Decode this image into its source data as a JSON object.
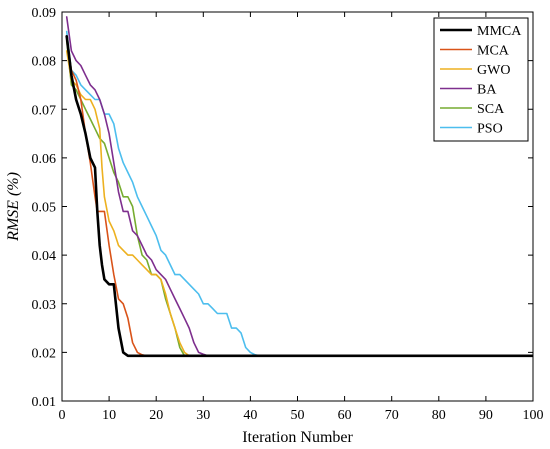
{
  "chart_data": {
    "type": "line",
    "title": "",
    "xlabel": "Iteration Number",
    "ylabel": "RMSE (%)",
    "xlim": [
      0,
      100
    ],
    "ylim": [
      0.01,
      0.09
    ],
    "x_ticks": [
      0,
      10,
      20,
      30,
      40,
      50,
      60,
      70,
      80,
      90,
      100
    ],
    "y_ticks": [
      0.01,
      0.02,
      0.03,
      0.04,
      0.05,
      0.06,
      0.07,
      0.08,
      0.09
    ],
    "y_tick_labels": [
      "0.01",
      "0.02",
      "0.03",
      "0.04",
      "0.05",
      "0.06",
      "0.07",
      "0.08",
      "0.09"
    ],
    "grid": false,
    "legend_position": "top-right",
    "series": [
      {
        "name": "MMCA",
        "color": "#000000",
        "width": 2.6,
        "x": [
          1,
          2,
          3,
          4,
          5,
          6,
          7,
          7.5,
          8,
          8.5,
          9,
          10,
          11,
          12,
          13,
          14,
          100
        ],
        "y": [
          0.085,
          0.077,
          0.072,
          0.069,
          0.065,
          0.06,
          0.058,
          0.049,
          0.042,
          0.038,
          0.035,
          0.034,
          0.034,
          0.025,
          0.02,
          0.0193,
          0.0193
        ]
      },
      {
        "name": "MCA",
        "color": "#D95319",
        "width": 1.6,
        "x": [
          1,
          2,
          3,
          4,
          5,
          6,
          7,
          7.5,
          8,
          9,
          10,
          11,
          12,
          13,
          14,
          15,
          16,
          17,
          18,
          100
        ],
        "y": [
          0.085,
          0.078,
          0.076,
          0.072,
          0.065,
          0.059,
          0.052,
          0.049,
          0.049,
          0.049,
          0.042,
          0.036,
          0.031,
          0.03,
          0.027,
          0.022,
          0.02,
          0.0195,
          0.0193,
          0.0193
        ]
      },
      {
        "name": "GWO",
        "color": "#EDB120",
        "width": 1.6,
        "x": [
          1,
          2,
          3,
          4,
          5,
          6,
          7,
          8,
          8.5,
          9,
          10,
          11,
          12,
          13,
          14,
          15,
          16,
          17,
          18,
          19,
          20,
          21,
          22,
          23,
          24,
          25,
          26,
          27,
          100
        ],
        "y": [
          0.082,
          0.076,
          0.075,
          0.073,
          0.072,
          0.072,
          0.07,
          0.066,
          0.058,
          0.052,
          0.047,
          0.045,
          0.042,
          0.041,
          0.04,
          0.04,
          0.039,
          0.038,
          0.037,
          0.036,
          0.036,
          0.035,
          0.032,
          0.028,
          0.025,
          0.022,
          0.02,
          0.0193,
          0.0193
        ]
      },
      {
        "name": "BA",
        "color": "#7E2F8E",
        "width": 1.6,
        "x": [
          1,
          2,
          3,
          4,
          5,
          6,
          7,
          8,
          9,
          10,
          11,
          12,
          13,
          14,
          15,
          16,
          17,
          18,
          19,
          20,
          21,
          22,
          23,
          24,
          25,
          26,
          27,
          28,
          29,
          30,
          31,
          100
        ],
        "y": [
          0.089,
          0.082,
          0.08,
          0.079,
          0.077,
          0.075,
          0.074,
          0.072,
          0.069,
          0.065,
          0.059,
          0.053,
          0.049,
          0.049,
          0.045,
          0.044,
          0.042,
          0.04,
          0.039,
          0.037,
          0.036,
          0.035,
          0.033,
          0.031,
          0.029,
          0.027,
          0.025,
          0.022,
          0.02,
          0.0196,
          0.0193,
          0.0193
        ]
      },
      {
        "name": "SCA",
        "color": "#77AC30",
        "width": 1.6,
        "x": [
          1,
          2,
          3,
          4,
          5,
          6,
          7,
          8,
          9,
          10,
          11,
          12,
          13,
          14,
          15,
          16,
          17,
          18,
          19,
          20,
          21,
          22,
          23,
          24,
          25,
          26,
          100
        ],
        "y": [
          0.084,
          0.075,
          0.074,
          0.072,
          0.07,
          0.068,
          0.066,
          0.064,
          0.063,
          0.06,
          0.057,
          0.055,
          0.052,
          0.052,
          0.05,
          0.044,
          0.04,
          0.039,
          0.036,
          0.036,
          0.035,
          0.031,
          0.028,
          0.025,
          0.021,
          0.0193,
          0.0193
        ]
      },
      {
        "name": "PSO",
        "color": "#4DBEEE",
        "width": 1.6,
        "x": [
          1,
          2,
          3,
          4,
          5,
          6,
          7,
          8,
          9,
          10,
          11,
          12,
          13,
          14,
          15,
          16,
          17,
          18,
          19,
          20,
          21,
          22,
          23,
          24,
          25,
          26,
          27,
          28,
          29,
          30,
          31,
          32,
          33,
          34,
          35,
          36,
          37,
          38,
          39,
          40,
          41,
          42,
          43,
          100
        ],
        "y": [
          0.086,
          0.078,
          0.077,
          0.075,
          0.074,
          0.073,
          0.072,
          0.072,
          0.069,
          0.069,
          0.067,
          0.062,
          0.059,
          0.057,
          0.055,
          0.052,
          0.05,
          0.048,
          0.046,
          0.044,
          0.041,
          0.04,
          0.038,
          0.036,
          0.036,
          0.035,
          0.034,
          0.033,
          0.032,
          0.03,
          0.03,
          0.029,
          0.028,
          0.028,
          0.028,
          0.025,
          0.025,
          0.024,
          0.021,
          0.02,
          0.0195,
          0.0193,
          0.0193,
          0.0193
        ]
      }
    ]
  }
}
